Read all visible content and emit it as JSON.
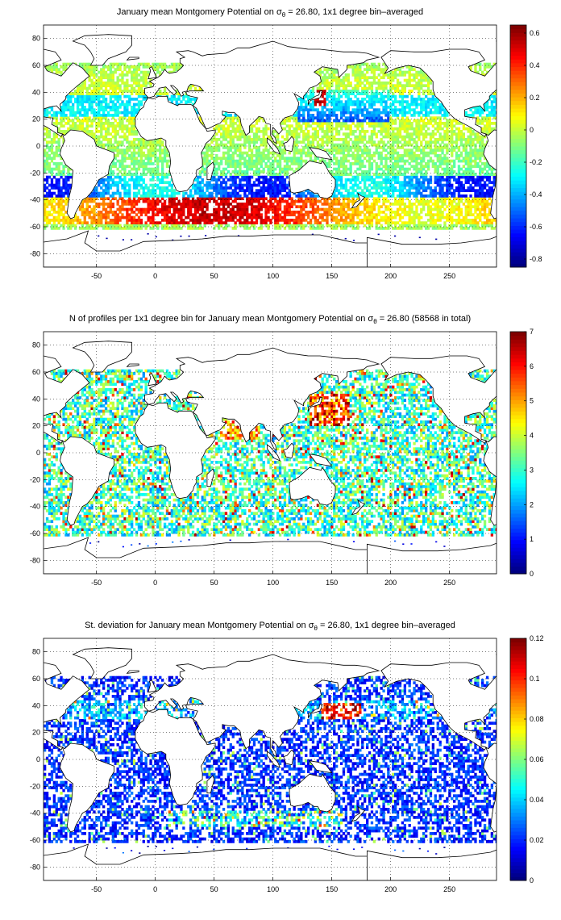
{
  "chart_data": [
    {
      "type": "heatmap",
      "title": "January mean Montgomery Potential on σθ = 26.80, 1x1 degree bin–averaged",
      "title_parts": {
        "pre": "January mean Montgomery Potential on ",
        "sigma": "σ",
        "sub": "θ",
        "post": " = 26.80, 1x1 degree bin–averaged"
      },
      "xlabel": "",
      "ylabel": "",
      "xlim": [
        -95,
        290
      ],
      "ylim": [
        -90,
        90
      ],
      "xticks": [
        -50,
        0,
        50,
        100,
        150,
        200,
        250
      ],
      "yticks": [
        -80,
        -60,
        -40,
        -20,
        0,
        20,
        40,
        60,
        80
      ],
      "grid": true,
      "colorbar": {
        "min": -0.85,
        "max": 0.65,
        "ticks": [
          -0.8,
          -0.6,
          -0.4,
          -0.2,
          0,
          0.2,
          0.4,
          0.6
        ],
        "labels": [
          "-0.8",
          "-0.6",
          "-0.4",
          "-0.2",
          "0",
          "0.2",
          "0.4",
          "0.6"
        ]
      },
      "field": "potential",
      "density": 0.72
    },
    {
      "type": "heatmap",
      "title": "N of profiles per 1x1 degree bin for January mean Montgomery Potential on σθ = 26.80 (58568 in total)",
      "title_parts": {
        "pre": "N of profiles per 1x1 degree bin for January mean Montgomery Potential on ",
        "sigma": "σ",
        "sub": "θ",
        "post": " = 26.80 (58568 in total)"
      },
      "xlabel": "",
      "ylabel": "",
      "xlim": [
        -95,
        290
      ],
      "ylim": [
        -90,
        90
      ],
      "xticks": [
        -50,
        0,
        50,
        100,
        150,
        200,
        250
      ],
      "yticks": [
        -80,
        -60,
        -40,
        -20,
        0,
        20,
        40,
        60,
        80
      ],
      "grid": true,
      "colorbar": {
        "min": 0,
        "max": 7,
        "ticks": [
          0,
          1,
          2,
          3,
          4,
          5,
          6,
          7
        ],
        "labels": [
          "0",
          "1",
          "2",
          "3",
          "4",
          "5",
          "6",
          "7"
        ]
      },
      "field": "count",
      "density": 0.62
    },
    {
      "type": "heatmap",
      "title": "St. deviation for January mean Montgomery Potential on σθ = 26.80, 1x1 degree bin–averaged",
      "title_parts": {
        "pre": "St. deviation for January mean Montgomery Potential on ",
        "sigma": "σ",
        "sub": "θ",
        "post": " = 26.80, 1x1 degree bin–averaged"
      },
      "xlabel": "",
      "ylabel": "",
      "xlim": [
        -95,
        290
      ],
      "ylim": [
        -90,
        90
      ],
      "xticks": [
        -50,
        0,
        50,
        100,
        150,
        200,
        250
      ],
      "yticks": [
        -80,
        -60,
        -40,
        -20,
        0,
        20,
        40,
        60,
        80
      ],
      "grid": true,
      "colorbar": {
        "min": 0,
        "max": 0.12,
        "ticks": [
          0,
          0.02,
          0.04,
          0.06,
          0.08,
          0.1,
          0.12
        ],
        "labels": [
          "0",
          "0.02",
          "0.04",
          "0.06",
          "0.08",
          "0.1",
          "0.12"
        ]
      },
      "field": "stdev",
      "density": 0.55
    }
  ]
}
